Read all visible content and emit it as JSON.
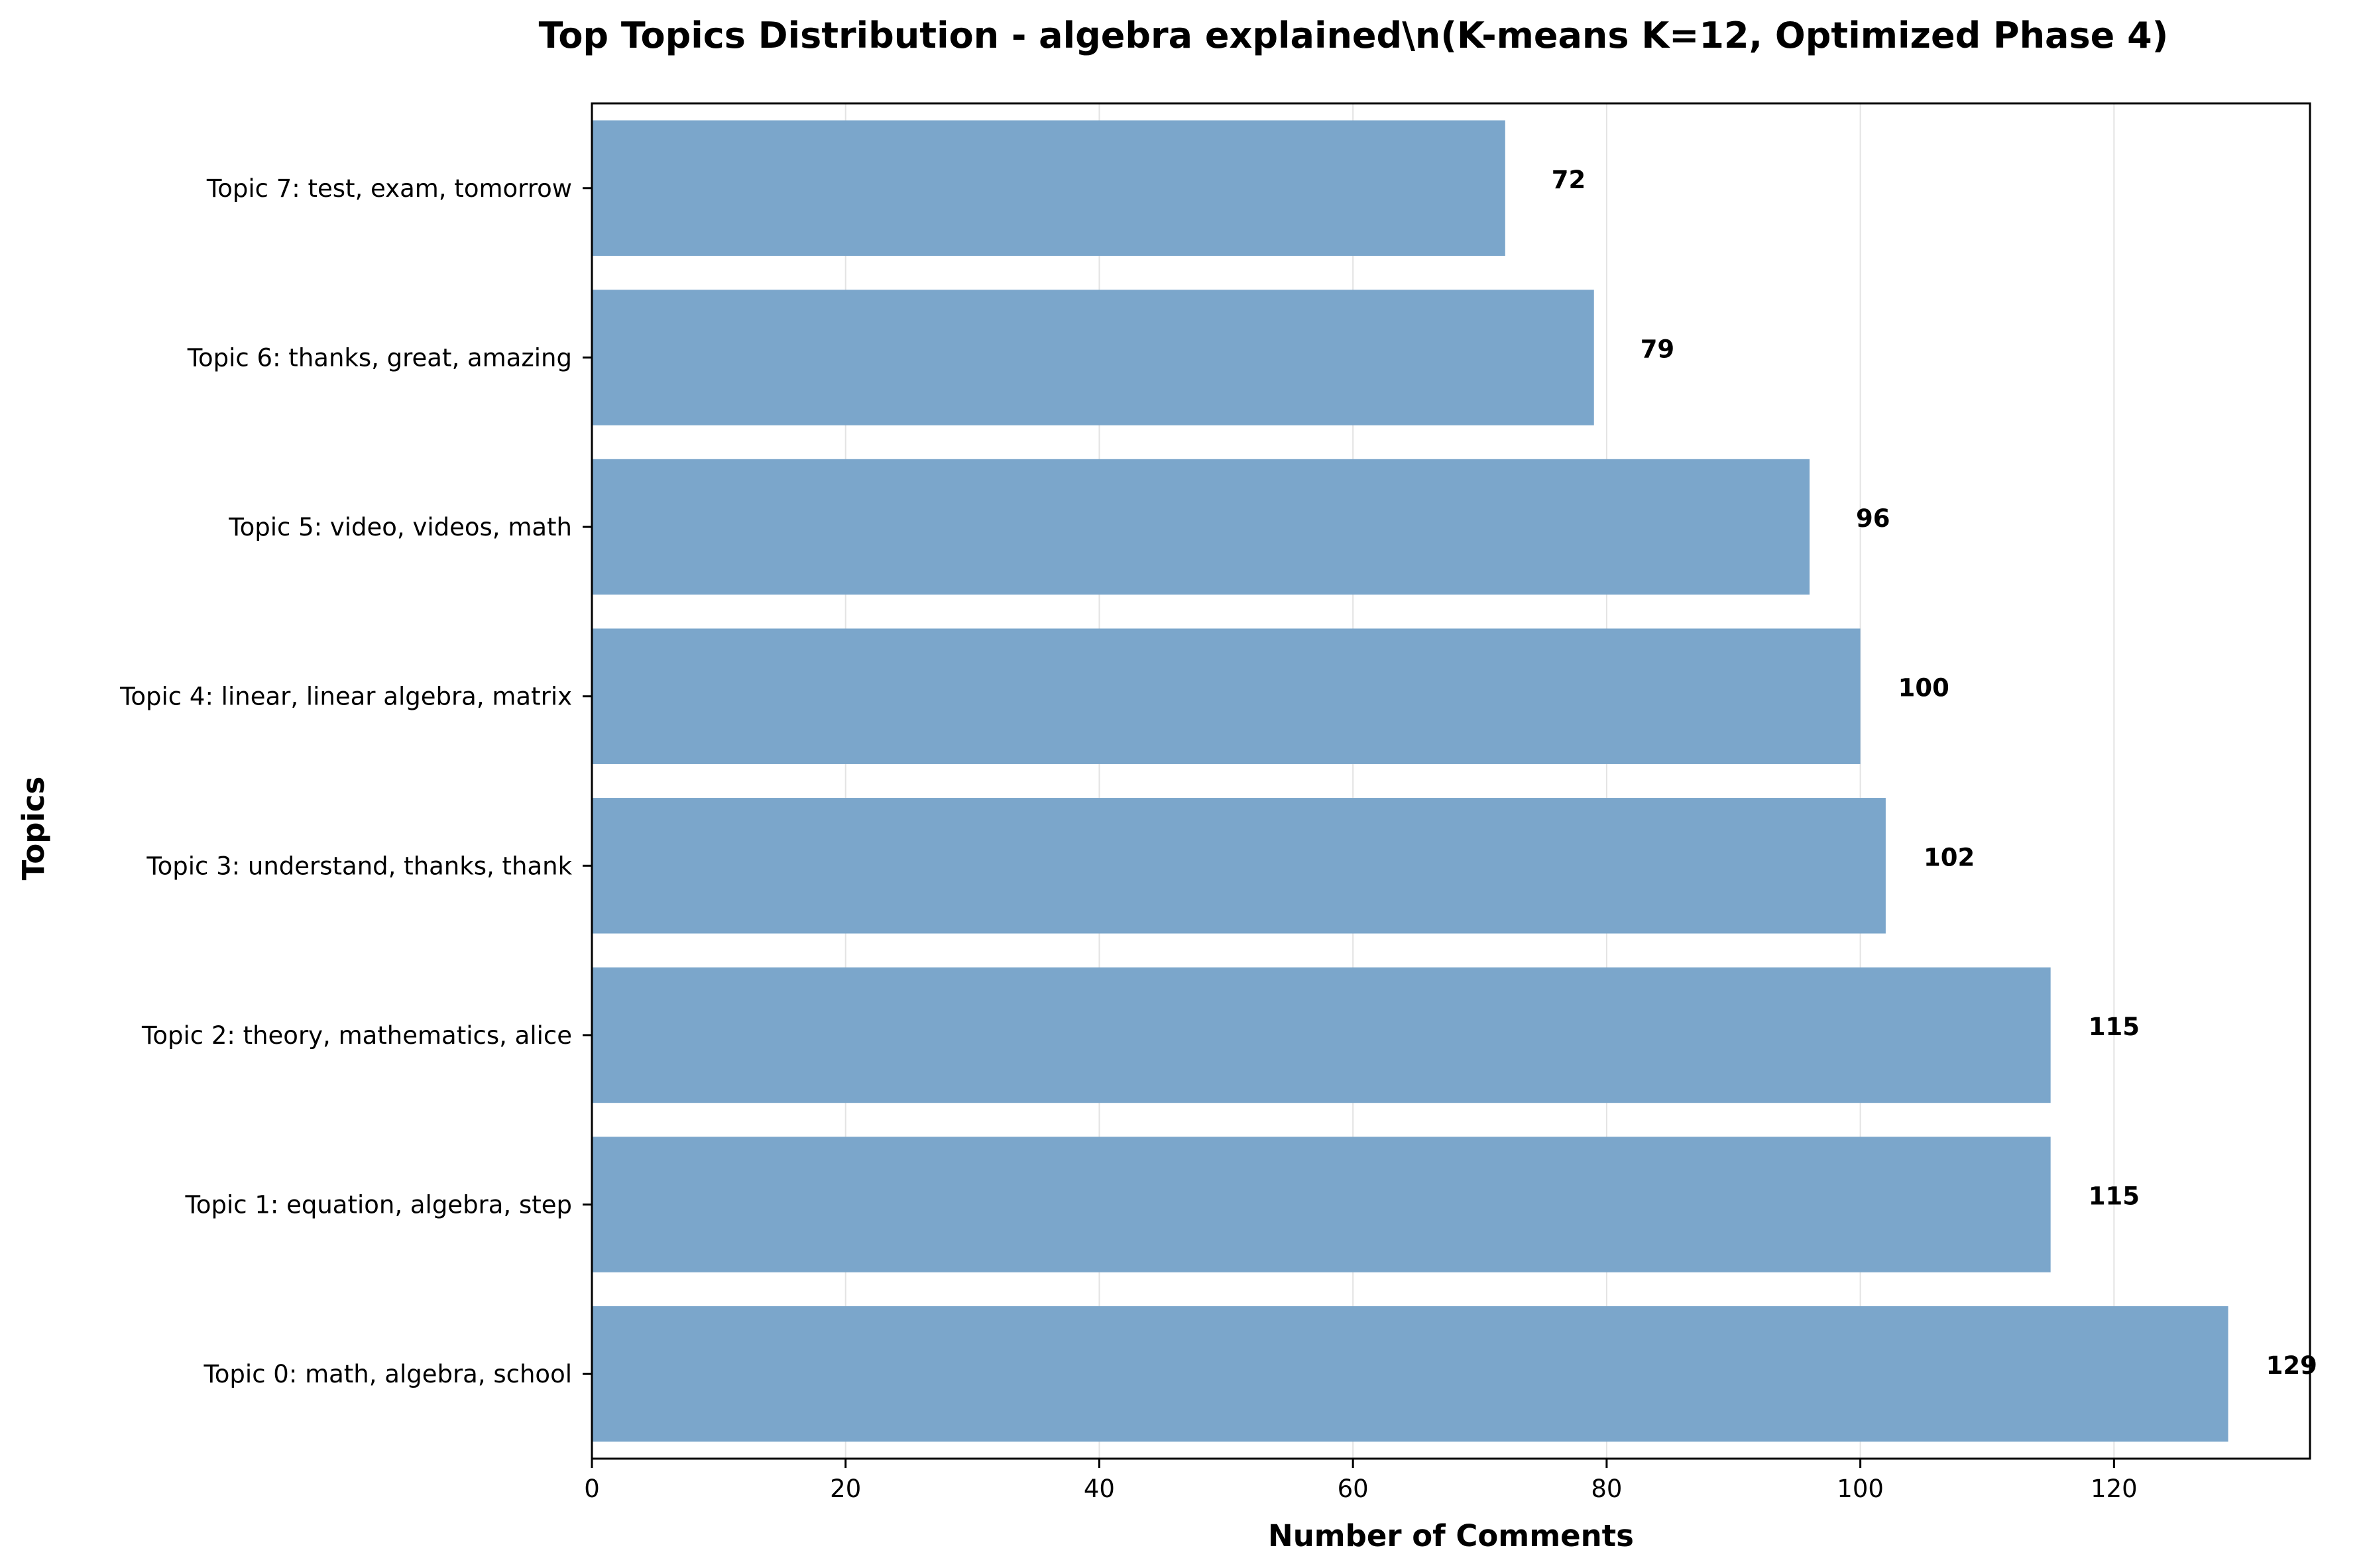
{
  "chart_data": {
    "type": "bar",
    "orientation": "horizontal",
    "title": "Top Topics Distribution - algebra explained\\n(K-means K=12, Optimized Phase 4)",
    "xlabel": "Number of Comments",
    "ylabel": "Topics",
    "categories": [
      "Topic 0: math, algebra, school",
      "Topic 1: equation, algebra, step",
      "Topic 2: theory, mathematics, alice",
      "Topic 3: understand, thanks, thank",
      "Topic 4: linear, linear algebra, matrix",
      "Topic 5: video, videos, math",
      "Topic 6: thanks, great, amazing",
      "Topic 7: test, exam, tomorrow"
    ],
    "values": [
      129,
      115,
      115,
      102,
      100,
      96,
      79,
      72
    ],
    "value_labels": [
      "129",
      "115",
      "115",
      "102",
      "100",
      "96",
      "79",
      "72"
    ],
    "xlim": [
      0,
      135.45
    ],
    "xticks": [
      0,
      20,
      40,
      60,
      80,
      100,
      120
    ],
    "xtick_labels": [
      "0",
      "20",
      "40",
      "60",
      "80",
      "100",
      "120"
    ],
    "grid": "vertical gridlines",
    "bar_color": "#7ba6cb",
    "grid_color": "#e3e3e3"
  }
}
